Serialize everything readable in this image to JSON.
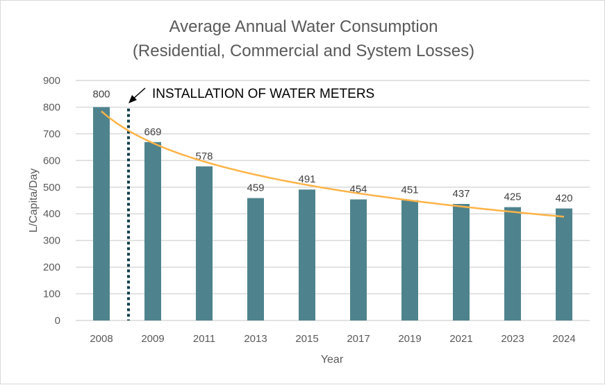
{
  "chart_data": {
    "type": "bar",
    "title": "Average Annual Water Consumption",
    "subtitle": "(Residential, Commercial and System Losses)",
    "xlabel": "Year",
    "ylabel": "L/Capita/Day",
    "categories": [
      "2008",
      "2009",
      "2011",
      "2013",
      "2015",
      "2017",
      "2019",
      "2021",
      "2023",
      "2024"
    ],
    "values": [
      800,
      669,
      578,
      459,
      491,
      454,
      451,
      437,
      425,
      420
    ],
    "data_labels": [
      "800",
      "669",
      "578",
      "459",
      "491",
      "454",
      "451",
      "437",
      "425",
      "420"
    ],
    "ylim": [
      0,
      900
    ],
    "yticks": [
      0,
      100,
      200,
      300,
      400,
      500,
      600,
      700,
      800,
      900
    ],
    "ytick_labels": [
      "0",
      "100",
      "200",
      "300",
      "400",
      "500",
      "600",
      "700",
      "800",
      "900"
    ],
    "grid": true,
    "legend": "none",
    "trendline": {
      "type": "logarithmic",
      "approx_values": [
        780,
        690,
        600,
        530,
        490,
        465,
        445,
        432,
        415,
        405
      ]
    },
    "annotation": {
      "text": "INSTALLATION OF WATER METERS",
      "marker": "dotted vertical line between 2008 and 2009 with arrow"
    },
    "colors": {
      "bar": "#4e838d",
      "trendline": "#ffb347",
      "marker_line": "#0b3c49",
      "grid": "#d9d9d9"
    }
  }
}
